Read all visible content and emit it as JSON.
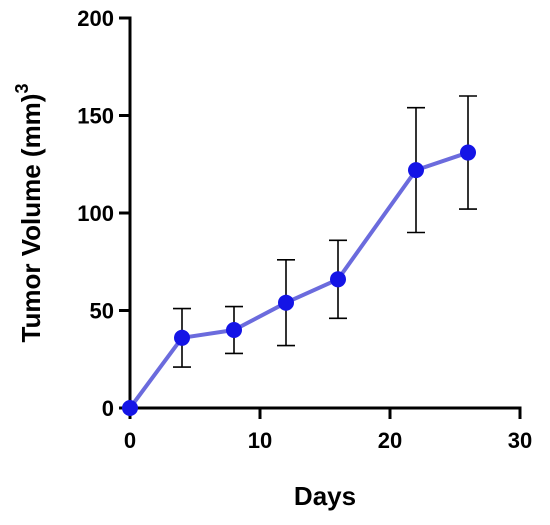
{
  "colors": {
    "line": "#6b6bdd",
    "marker": "#1414e6",
    "axis": "#000000",
    "error_bar": "#000000"
  },
  "chart_data": {
    "type": "line",
    "title": "",
    "xlabel": "Days",
    "ylabel": "Tumor Volume (mm)",
    "ylabel_superscript": "3",
    "xlim": [
      0,
      30
    ],
    "ylim": [
      0,
      200
    ],
    "x_ticks": [
      0,
      10,
      20,
      30
    ],
    "y_ticks": [
      0,
      50,
      100,
      150,
      200
    ],
    "x_tick_labels": [
      "0",
      "10",
      "20",
      "30"
    ],
    "y_tick_labels": [
      "0",
      "50",
      "100",
      "150",
      "200"
    ],
    "grid": false,
    "legend": "none",
    "series": [
      {
        "x": [
          0,
          4,
          8,
          12,
          16,
          22,
          26
        ],
        "y": [
          0,
          36,
          40,
          54,
          66,
          122,
          131
        ],
        "error": [
          0,
          15,
          12,
          22,
          20,
          32,
          29
        ]
      }
    ]
  }
}
